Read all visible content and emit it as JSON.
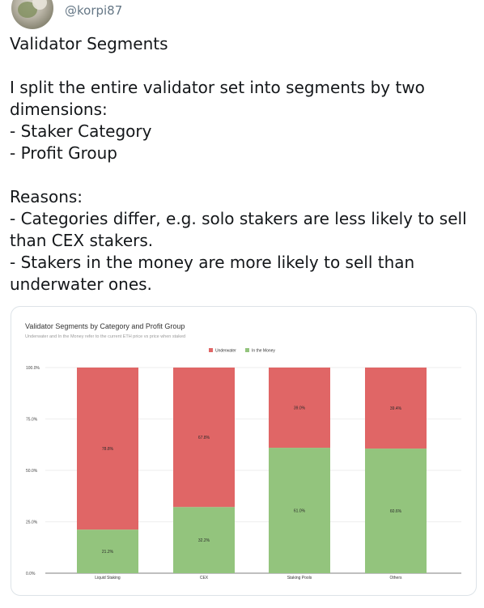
{
  "tweet": {
    "handle": "@korpi87",
    "avatar": "user-avatar-image",
    "text": "Validator Segments\n\nI split the entire validator set into segments by two dimensions:\n- Staker Category\n- Profit Group\n\nReasons:\n- Categories differ, e.g. solo stakers are less likely to sell than CEX stakers.\n- Stakers in the money are more likely to sell than underwater ones."
  },
  "chart_data": {
    "type": "bar",
    "stacked": true,
    "title": "Validator Segments by Category and Profit Group",
    "subtitle": "Underwater and In the Money refer to the current ETH price vs price when staked",
    "categories": [
      "Liquid Staking",
      "CEX",
      "Staking Pools",
      "Others"
    ],
    "series": [
      {
        "name": "In the Money",
        "color": "#93c47d",
        "values": [
          21.2,
          32.2,
          61.0,
          60.6
        ],
        "labels": [
          "21.2%",
          "32.2%",
          "61.0%",
          "60.6%"
        ]
      },
      {
        "name": "Underwater",
        "color": "#e06666",
        "values": [
          78.8,
          67.8,
          39.0,
          39.4
        ],
        "labels": [
          "78.8%",
          "67.8%",
          "39.0%",
          "39.4%"
        ]
      }
    ],
    "yticks": [
      "0.0%",
      "25.0%",
      "50.0%",
      "75.0%",
      "100.0%"
    ],
    "ylim": [
      0,
      100
    ],
    "legend": {
      "position": "top",
      "entries": [
        "Underwater",
        "In the Money"
      ]
    },
    "grid": true
  }
}
